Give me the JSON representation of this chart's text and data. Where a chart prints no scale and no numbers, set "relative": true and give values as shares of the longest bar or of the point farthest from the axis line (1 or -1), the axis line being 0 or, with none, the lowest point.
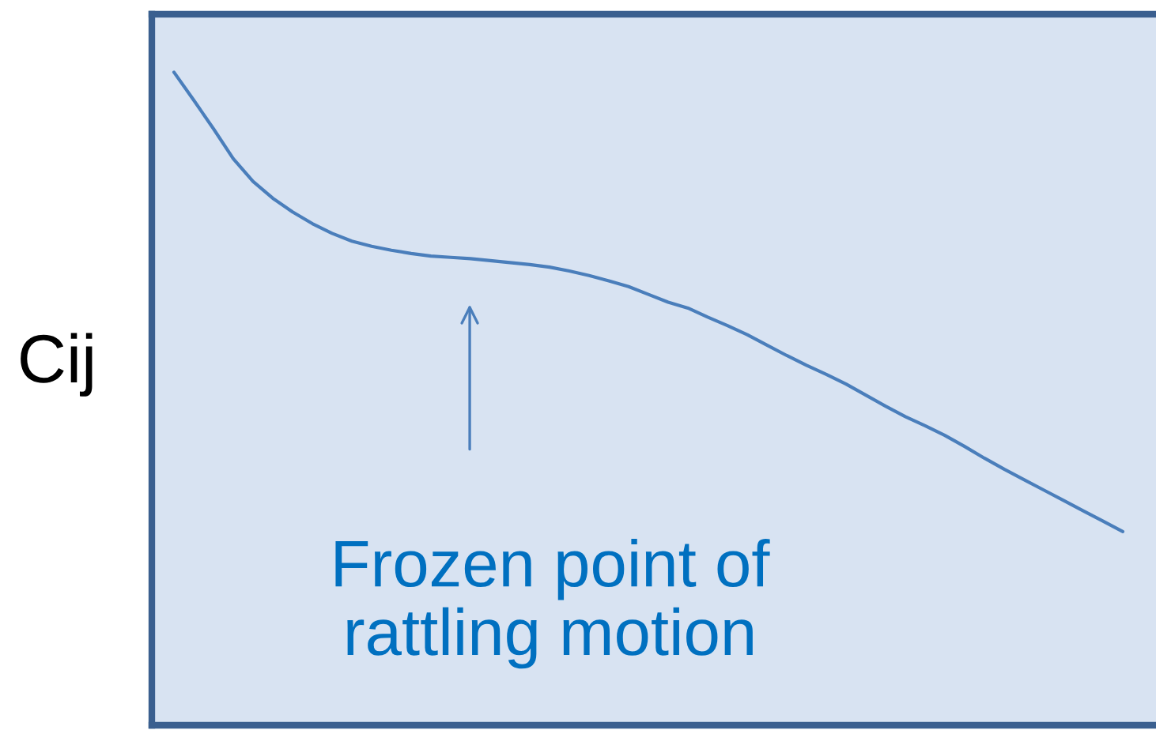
{
  "chart_data": {
    "type": "line",
    "ylabel": "Cij",
    "annotations": [
      "Frozen point of\nrattling motion"
    ],
    "categories": [
      null,
      null,
      null,
      null,
      null,
      null,
      null,
      null,
      null,
      null,
      null,
      null,
      null,
      null,
      null,
      null,
      null,
      null,
      null,
      null,
      null,
      null,
      null,
      null,
      null,
      null,
      null,
      null,
      null,
      null,
      null,
      null,
      null,
      null,
      null,
      null,
      null,
      null,
      null,
      null,
      null,
      null,
      null,
      null,
      null,
      null,
      null,
      null,
      null
    ],
    "values": [
      1.0,
      0.957,
      0.913,
      0.867,
      0.832,
      0.806,
      0.785,
      0.767,
      0.752,
      0.74,
      0.732,
      0.726,
      0.721,
      0.717,
      0.715,
      0.713,
      0.71,
      0.707,
      0.704,
      0.7,
      0.694,
      0.687,
      0.679,
      0.67,
      0.658,
      0.646,
      0.637,
      0.623,
      0.61,
      0.596,
      0.58,
      0.564,
      0.549,
      0.535,
      0.52,
      0.503,
      0.486,
      0.47,
      0.456,
      0.441,
      0.424,
      0.406,
      0.389,
      0.373,
      0.357,
      0.341,
      0.325,
      0.309,
      0.293
    ],
    "color": "#4a7ebb",
    "relative": true
  }
}
